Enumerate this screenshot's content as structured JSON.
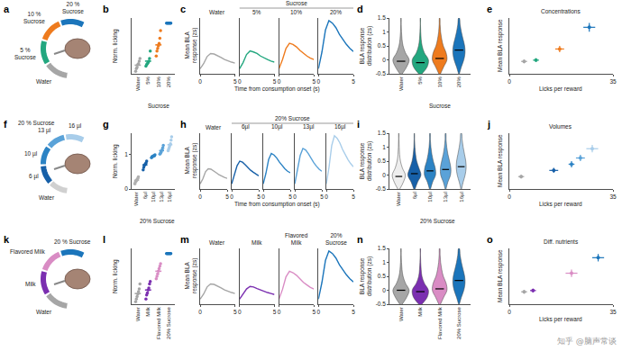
{
  "diagrams": [
    {
      "panel": "a",
      "labels": [
        "Water",
        "5 %\nSucrose",
        "10 %\nSucrose",
        "20 %\nSucrose"
      ],
      "colors": [
        "#a6a6a6",
        "#23a77f",
        "#ee7b1e",
        "#1b75bb"
      ]
    },
    {
      "panel": "f",
      "group": "20 % Sucrose",
      "labels": [
        "Water",
        "6 µl",
        "10 µl",
        "13 µl",
        "16 µl"
      ],
      "colors": [
        "#d0d0d0",
        "#1760a8",
        "#2c83c4",
        "#5aa2d8",
        "#a8cdea"
      ]
    },
    {
      "panel": "k",
      "labels": [
        "Water",
        "Milk",
        "Flavored Milk",
        "20 % Sucrose"
      ],
      "colors": [
        "#a6a6a6",
        "#7b2fb0",
        "#d98cc4",
        "#1b75bb"
      ]
    }
  ],
  "watermark": "知乎 @脑声常谈",
  "chart_data": [
    {
      "panel": "b",
      "type": "strip",
      "ylabel": "Norm. licking",
      "categories": [
        "Water",
        "5%",
        "10%",
        "20%"
      ],
      "group": {
        "label": "Sucrose",
        "categories": [
          "5%",
          "10%",
          "20%"
        ]
      },
      "values": [
        0.17,
        0.25,
        0.57,
        1.0
      ],
      "points": [
        [
          0.05,
          0.1,
          0.13,
          0.18,
          0.2,
          0.25,
          0.3
        ],
        [
          0.15,
          0.18,
          0.2,
          0.22,
          0.25,
          0.3,
          0.45
        ],
        [
          0.35,
          0.45,
          0.5,
          0.55,
          0.6,
          0.7,
          0.85
        ],
        [
          1,
          1,
          1,
          1,
          1,
          1,
          1
        ]
      ],
      "colors": [
        "#a6a6a6",
        "#23a77f",
        "#ee7b1e",
        "#1b75bb"
      ],
      "ylim": [
        0,
        1.1
      ],
      "tick_labels": "x"
    },
    {
      "panel": "c",
      "type": "line",
      "ylabel": "Mean BLA response (zs)",
      "xlabel": "Time from consumption onset (s)",
      "group": {
        "label": "Sucrose",
        "categories": [
          "5%",
          "10%",
          "20%"
        ]
      },
      "x": [
        0,
        0.5,
        1,
        1.5,
        2,
        2.5,
        3,
        3.5,
        4,
        4.5,
        5
      ],
      "series": [
        {
          "name": "Water",
          "color": "#a6a6a6",
          "values": [
            0,
            0.1,
            0.24,
            0.3,
            0.29,
            0.26,
            0.22,
            0.18,
            0.15,
            0.13,
            0.11
          ]
        },
        {
          "name": "5%",
          "color": "#23a77f",
          "values": [
            0,
            0.12,
            0.28,
            0.35,
            0.33,
            0.3,
            0.25,
            0.21,
            0.18,
            0.15,
            0.13
          ]
        },
        {
          "name": "10%",
          "color": "#ee7b1e",
          "values": [
            0,
            0.18,
            0.4,
            0.5,
            0.48,
            0.43,
            0.36,
            0.3,
            0.25,
            0.21,
            0.18
          ]
        },
        {
          "name": "20%",
          "color": "#1b75bb",
          "values": [
            0,
            0.33,
            0.76,
            0.95,
            0.9,
            0.81,
            0.68,
            0.57,
            0.48,
            0.4,
            0.34
          ]
        }
      ],
      "xlim": [
        0,
        5
      ],
      "xticks": [
        0,
        5
      ],
      "ylim": [
        -0.1,
        1.0
      ],
      "tick_labels": "x"
    },
    {
      "panel": "d",
      "type": "violin",
      "ylabel": "BLA response distribution (zs)",
      "categories": [
        "Water",
        "5%",
        "10%",
        "20%"
      ],
      "group": {
        "label": "Sucrose",
        "categories": [
          "5%",
          "10%",
          "20%"
        ]
      },
      "y_grid": [
        -0.5,
        -0.25,
        0,
        0.25,
        0.5,
        0.75,
        1,
        1.25,
        1.5
      ],
      "densities": [
        [
          0.15,
          0.7,
          1.0,
          0.55,
          0.25,
          0.12,
          0.06,
          0.03,
          0.01
        ],
        [
          0.2,
          0.85,
          1.0,
          0.5,
          0.22,
          0.1,
          0.05,
          0.02,
          0.01
        ],
        [
          0.1,
          0.5,
          0.9,
          0.8,
          0.45,
          0.25,
          0.12,
          0.06,
          0.02
        ],
        [
          0.05,
          0.3,
          0.6,
          0.75,
          0.7,
          0.5,
          0.3,
          0.15,
          0.05
        ]
      ],
      "medians": [
        -0.05,
        -0.1,
        0.05,
        0.35
      ],
      "colors": [
        "#a6a6a6",
        "#23a77f",
        "#ee7b1e",
        "#1b75bb"
      ],
      "ylim": [
        -0.5,
        1.5
      ],
      "yticks": [
        -0.5,
        0,
        0.5,
        1,
        1.5
      ]
    },
    {
      "panel": "e",
      "type": "scatter",
      "title": "Concentrations",
      "xlabel": "Licks per reward",
      "ylabel": "Mean BLA response",
      "x": [
        5,
        9,
        17,
        27
      ],
      "values": [
        0.2,
        0.22,
        0.4,
        0.75
      ],
      "xerr": [
        1,
        1,
        1.5,
        2
      ],
      "yerr": [
        0.03,
        0.03,
        0.05,
        0.07
      ],
      "colors": [
        "#a6a6a6",
        "#23a77f",
        "#ee7b1e",
        "#1b75bb"
      ],
      "xlim": [
        0,
        35
      ],
      "xticks": [
        0,
        35
      ],
      "ylim": [
        0,
        0.9
      ],
      "tick_labels": "x"
    },
    {
      "panel": "g",
      "type": "strip",
      "ylabel": "Norm. licking",
      "categories": [
        "Water",
        "6µl",
        "10µl",
        "13µl",
        "16µl"
      ],
      "group": {
        "label": "20% Sucrose",
        "categories": [
          "6µl",
          "10µl",
          "13µl",
          "16µl"
        ]
      },
      "values": [
        0.25,
        0.69,
        0.94,
        1.1,
        1.27
      ],
      "points": [
        [
          0.15,
          0.2,
          0.22,
          0.25,
          0.28,
          0.3,
          0.35
        ],
        [
          0.55,
          0.62,
          0.68,
          0.7,
          0.72,
          0.75,
          0.8
        ],
        [
          0.9,
          0.92,
          0.93,
          0.95,
          0.95,
          0.96,
          0.98
        ],
        [
          1.0,
          1.02,
          1.05,
          1.1,
          1.12,
          1.18,
          1.25
        ],
        [
          1.1,
          1.15,
          1.2,
          1.25,
          1.3,
          1.4,
          1.5
        ]
      ],
      "colors": [
        "#b0b0b0",
        "#1760a8",
        "#2c83c4",
        "#5aa2d8",
        "#a8cdea"
      ],
      "ylim": [
        0,
        1.6
      ],
      "yticks": [
        0,
        1
      ]
    },
    {
      "panel": "h",
      "type": "line",
      "ylabel": "Mean BLA response (zs)",
      "xlabel": "Time from consumption onset (s)",
      "group": {
        "label": "20% Sucrose",
        "categories": [
          "6µl",
          "10µl",
          "13µl",
          "16µl"
        ]
      },
      "x": [
        0,
        0.5,
        1,
        1.5,
        2,
        2.5,
        3,
        3.5,
        4,
        4.5,
        5
      ],
      "series": [
        {
          "name": "Water",
          "color": "#a6a6a6",
          "values": [
            0,
            0.1,
            0.24,
            0.3,
            0.29,
            0.26,
            0.22,
            0.18,
            0.15,
            0.13,
            0.11
          ]
        },
        {
          "name": "6µl",
          "color": "#1760a8",
          "values": [
            0,
            0.16,
            0.36,
            0.45,
            0.43,
            0.38,
            0.32,
            0.27,
            0.23,
            0.19,
            0.16
          ]
        },
        {
          "name": "10µl",
          "color": "#2c83c4",
          "values": [
            0,
            0.21,
            0.48,
            0.6,
            0.57,
            0.51,
            0.43,
            0.36,
            0.3,
            0.25,
            0.22
          ]
        },
        {
          "name": "13µl",
          "color": "#5aa2d8",
          "values": [
            0,
            0.25,
            0.56,
            0.7,
            0.67,
            0.6,
            0.5,
            0.42,
            0.35,
            0.29,
            0.25
          ]
        },
        {
          "name": "16µl",
          "color": "#a8cdea",
          "values": [
            0,
            0.33,
            0.76,
            0.95,
            0.9,
            0.81,
            0.68,
            0.57,
            0.48,
            0.4,
            0.34
          ]
        }
      ],
      "xlim": [
        0,
        5
      ],
      "xticks": [
        0,
        5
      ],
      "ylim": [
        -0.1,
        1.0
      ],
      "tick_labels": "x"
    },
    {
      "panel": "i",
      "type": "violin",
      "ylabel": "BLA response distribution (zs)",
      "categories": [
        "Water",
        "6µl",
        "10µl",
        "13µl",
        "16µl"
      ],
      "group": {
        "label": "20% Sucrose",
        "categories": [
          "6µl",
          "10µl",
          "13µl",
          "16µl"
        ]
      },
      "y_grid": [
        -0.5,
        -0.25,
        0,
        0.25,
        0.5,
        0.75,
        1,
        1.25,
        1.5
      ],
      "densities": [
        [
          0.15,
          0.7,
          1.0,
          0.55,
          0.25,
          0.12,
          0.06,
          0.03,
          0.01
        ],
        [
          0.1,
          0.5,
          1.0,
          0.7,
          0.35,
          0.18,
          0.08,
          0.04,
          0.01
        ],
        [
          0.08,
          0.4,
          0.85,
          0.8,
          0.5,
          0.28,
          0.14,
          0.06,
          0.02
        ],
        [
          0.06,
          0.35,
          0.75,
          0.8,
          0.6,
          0.35,
          0.18,
          0.08,
          0.03
        ],
        [
          0.05,
          0.3,
          0.6,
          0.75,
          0.7,
          0.5,
          0.3,
          0.15,
          0.05
        ]
      ],
      "medians": [
        -0.05,
        0.05,
        0.15,
        0.2,
        0.3
      ],
      "colors": [
        "#eeeeee",
        "#1760a8",
        "#2c83c4",
        "#5aa2d8",
        "#a8cdea"
      ],
      "ylim": [
        -0.5,
        1.5
      ],
      "yticks": [
        -0.5,
        0,
        0.5,
        1,
        1.5
      ]
    },
    {
      "panel": "j",
      "type": "scatter",
      "title": "Volumes",
      "xlabel": "Licks per reward",
      "ylabel": "Mean BLA response",
      "x": [
        4,
        15,
        21,
        24,
        28
      ],
      "values": [
        0.2,
        0.3,
        0.4,
        0.5,
        0.65
      ],
      "xerr": [
        1,
        1.5,
        1,
        1.5,
        2
      ],
      "yerr": [
        0.03,
        0.04,
        0.05,
        0.05,
        0.06
      ],
      "colors": [
        "#a6a6a6",
        "#1760a8",
        "#2c83c4",
        "#5aa2d8",
        "#a8cdea"
      ],
      "xlim": [
        0,
        35
      ],
      "xticks": [
        0,
        35
      ],
      "ylim": [
        0,
        0.9
      ],
      "tick_labels": "x"
    },
    {
      "panel": "l",
      "type": "strip",
      "ylabel": "Norm. licking",
      "categories": [
        "Water",
        "Milk",
        "Flavored Milk",
        "20% Sucrose"
      ],
      "values": [
        0.21,
        0.28,
        0.65,
        1.0
      ],
      "points": [
        [
          0.05,
          0.1,
          0.15,
          0.2,
          0.25,
          0.3,
          0.4
        ],
        [
          0.1,
          0.18,
          0.22,
          0.28,
          0.32,
          0.4,
          0.45
        ],
        [
          0.5,
          0.55,
          0.6,
          0.65,
          0.7,
          0.75,
          0.8
        ],
        [
          1,
          1,
          1,
          1,
          1,
          1,
          1
        ]
      ],
      "colors": [
        "#a6a6a6",
        "#7b2fb0",
        "#d98cc4",
        "#1b75bb"
      ],
      "ylim": [
        0,
        1.1
      ],
      "tick_labels": "x"
    },
    {
      "panel": "m",
      "type": "line",
      "ylabel": "Mean BLA response (zs)",
      "x": [
        0,
        0.5,
        1,
        1.5,
        2,
        2.5,
        3,
        3.5,
        4,
        4.5,
        5
      ],
      "series": [
        {
          "name": "Water",
          "color": "#a6a6a6",
          "values": [
            0,
            0.1,
            0.24,
            0.3,
            0.29,
            0.26,
            0.22,
            0.18,
            0.15,
            0.13,
            0.11
          ]
        },
        {
          "name": "Milk",
          "color": "#7b2fb0",
          "values": [
            0,
            0.09,
            0.2,
            0.25,
            0.24,
            0.21,
            0.18,
            0.15,
            0.13,
            0.11,
            0.09
          ]
        },
        {
          "name": "Flavored Milk",
          "color": "#d98cc4",
          "values": [
            0,
            0.19,
            0.44,
            0.55,
            0.52,
            0.47,
            0.4,
            0.33,
            0.28,
            0.23,
            0.2
          ]
        },
        {
          "name": "20% Sucrose",
          "color": "#1b75bb",
          "values": [
            0,
            0.33,
            0.76,
            0.95,
            0.9,
            0.81,
            0.68,
            0.57,
            0.48,
            0.4,
            0.34
          ]
        }
      ],
      "xlim": [
        0,
        5
      ],
      "xticks": [
        0,
        5
      ],
      "ylim": [
        -0.1,
        1.0
      ],
      "tick_labels": "x"
    },
    {
      "panel": "n",
      "type": "violin",
      "ylabel": "BLA response distribution (zs)",
      "categories": [
        "Water",
        "Milk",
        "Flavored Milk",
        "20% Sucrose"
      ],
      "y_grid": [
        -0.5,
        -0.25,
        0,
        0.25,
        0.5,
        0.75,
        1,
        1.25,
        1.5
      ],
      "densities": [
        [
          0.15,
          0.7,
          1.0,
          0.55,
          0.25,
          0.12,
          0.06,
          0.03,
          0.01
        ],
        [
          0.2,
          0.85,
          1.0,
          0.5,
          0.2,
          0.1,
          0.05,
          0.02,
          0.01
        ],
        [
          0.1,
          0.5,
          0.9,
          0.8,
          0.45,
          0.25,
          0.12,
          0.06,
          0.02
        ],
        [
          0.05,
          0.3,
          0.6,
          0.75,
          0.7,
          0.5,
          0.3,
          0.15,
          0.05
        ]
      ],
      "medians": [
        0,
        -0.05,
        0.05,
        0.35
      ],
      "colors": [
        "#a6a6a6",
        "#7b2fb0",
        "#d98cc4",
        "#1b75bb"
      ],
      "ylim": [
        -0.5,
        1.5
      ],
      "yticks": [
        -0.5,
        0,
        0.5,
        1,
        1.5
      ]
    },
    {
      "panel": "o",
      "type": "scatter",
      "title": "Diff. nutrients",
      "xlabel": "Licks per reward",
      "ylabel": "Mean BLA response",
      "x": [
        5,
        8,
        21,
        30
      ],
      "values": [
        0.2,
        0.22,
        0.5,
        0.75
      ],
      "xerr": [
        1,
        1,
        2,
        2
      ],
      "yerr": [
        0.03,
        0.03,
        0.06,
        0.06
      ],
      "colors": [
        "#a6a6a6",
        "#7b2fb0",
        "#d98cc4",
        "#1b75bb"
      ],
      "xlim": [
        0,
        35
      ],
      "xticks": [
        0,
        35
      ],
      "ylim": [
        0,
        0.9
      ],
      "tick_labels": "x"
    }
  ]
}
